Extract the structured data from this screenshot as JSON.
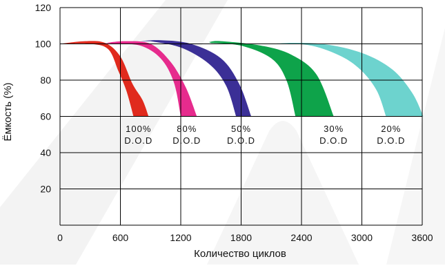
{
  "chart_data": {
    "type": "area",
    "xlabel": "Количество циклов",
    "ylabel": "Ёмкость (%)",
    "xlim": [
      0,
      3600
    ],
    "ylim": [
      0,
      120
    ],
    "x_ticks": [
      0,
      600,
      1200,
      1800,
      2400,
      3000,
      3600
    ],
    "y_ticks": [
      20,
      40,
      60,
      80,
      100,
      120
    ],
    "grid": true,
    "series": [
      {
        "name": "100% D.O.D",
        "label_top": "100%",
        "label_bottom": "D.O.D",
        "label_x": 780,
        "color": "#e02a1d",
        "upper": [
          [
            0,
            100
          ],
          [
            250,
            101.5
          ],
          [
            450,
            100.5
          ],
          [
            600,
            93
          ],
          [
            720,
            78
          ],
          [
            820,
            69
          ],
          [
            880,
            60
          ]
        ],
        "lower": [
          [
            0,
            100
          ],
          [
            300,
            100
          ],
          [
            480,
            97
          ],
          [
            580,
            85
          ],
          [
            660,
            74
          ],
          [
            730,
            60
          ]
        ]
      },
      {
        "name": "80% D.O.D",
        "label_top": "80%",
        "label_bottom": "D.O.D",
        "label_x": 1260,
        "color": "#e62b8d",
        "upper": [
          [
            450,
            100.5
          ],
          [
            650,
            101.5
          ],
          [
            900,
            100
          ],
          [
            1100,
            90
          ],
          [
            1250,
            76
          ],
          [
            1360,
            60
          ]
        ],
        "lower": [
          [
            550,
            100
          ],
          [
            800,
            99
          ],
          [
            1000,
            92
          ],
          [
            1130,
            79
          ],
          [
            1200,
            60
          ]
        ]
      },
      {
        "name": "50% D.O.D",
        "label_top": "50%",
        "label_bottom": "D.O.D",
        "label_x": 1800,
        "color": "#3b2f96",
        "upper": [
          [
            800,
            101.5
          ],
          [
            1000,
            102
          ],
          [
            1300,
            100
          ],
          [
            1600,
            92
          ],
          [
            1780,
            78
          ],
          [
            1900,
            60
          ]
        ],
        "lower": [
          [
            900,
            101.5
          ],
          [
            1200,
            98
          ],
          [
            1480,
            89
          ],
          [
            1650,
            77
          ],
          [
            1750,
            60
          ]
        ]
      },
      {
        "name": "30% D.O.D",
        "label_top": "30%",
        "label_bottom": "D.O.D",
        "label_x": 2720,
        "color": "#0ea34a",
        "upper": [
          [
            1480,
            101
          ],
          [
            1600,
            101.5
          ],
          [
            2000,
            99
          ],
          [
            2300,
            94
          ],
          [
            2550,
            83
          ],
          [
            2720,
            60
          ]
        ],
        "lower": [
          [
            1500,
            100.5
          ],
          [
            1800,
            99
          ],
          [
            2100,
            92
          ],
          [
            2250,
            80
          ],
          [
            2340,
            60
          ]
        ]
      },
      {
        "name": "20% D.O.D",
        "label_top": "20%",
        "label_bottom": "D.O.D",
        "label_x": 3290,
        "color": "#6dd3ce",
        "upper": [
          [
            2150,
            100.5
          ],
          [
            2600,
            100
          ],
          [
            3000,
            95
          ],
          [
            3300,
            86
          ],
          [
            3500,
            73
          ],
          [
            3610,
            60
          ]
        ],
        "lower": [
          [
            2150,
            100.5
          ],
          [
            2500,
            99
          ],
          [
            2800,
            93
          ],
          [
            3000,
            85
          ],
          [
            3150,
            74
          ],
          [
            3240,
            60
          ]
        ]
      }
    ]
  }
}
